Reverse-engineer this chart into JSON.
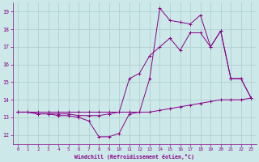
{
  "background_color": "#cce8e8",
  "grid_color": "#aacccc",
  "line_color": "#880088",
  "marker_color": "#880088",
  "xlim": [
    -0.5,
    23.5
  ],
  "ylim": [
    11.5,
    19.5
  ],
  "xticks": [
    0,
    1,
    2,
    3,
    4,
    5,
    6,
    7,
    8,
    9,
    10,
    11,
    12,
    13,
    14,
    15,
    16,
    17,
    18,
    19,
    20,
    21,
    22,
    23
  ],
  "yticks": [
    12,
    13,
    14,
    15,
    16,
    17,
    18,
    19
  ],
  "xlabel": "Windchill (Refroidissement éolien,°C)",
  "series": [
    [
      13.3,
      13.3,
      13.3,
      13.3,
      13.3,
      13.3,
      13.3,
      13.3,
      13.3,
      13.3,
      13.3,
      13.3,
      13.3,
      13.3,
      13.4,
      13.5,
      13.6,
      13.7,
      13.8,
      13.9,
      14.0,
      14.0,
      14.0,
      14.1
    ],
    [
      13.3,
      13.3,
      13.2,
      13.2,
      13.1,
      13.1,
      13.0,
      12.8,
      11.9,
      11.9,
      12.1,
      13.2,
      13.3,
      15.2,
      19.2,
      18.5,
      18.4,
      18.3,
      18.8,
      17.0,
      17.9,
      15.2,
      15.2,
      14.1
    ],
    [
      13.3,
      13.3,
      13.2,
      13.2,
      13.2,
      13.2,
      13.1,
      13.1,
      13.1,
      13.2,
      13.3,
      15.2,
      15.5,
      16.5,
      17.0,
      17.5,
      16.8,
      17.8,
      17.8,
      17.0,
      17.9,
      15.2,
      15.2,
      14.1
    ]
  ]
}
